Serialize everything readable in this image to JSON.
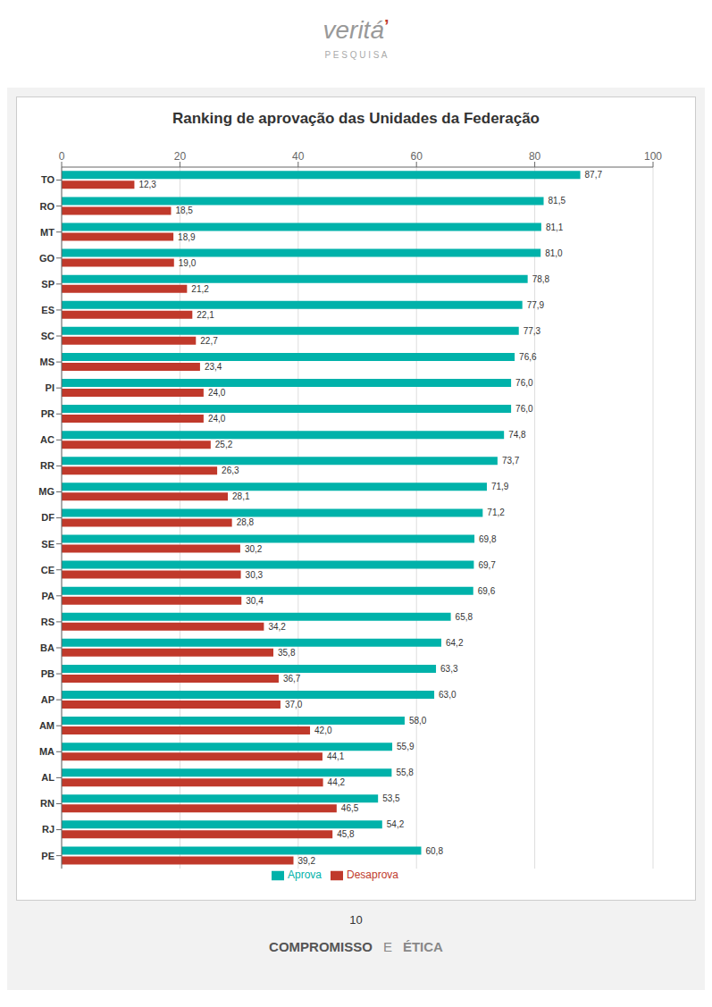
{
  "chart_data": {
    "type": "bar",
    "title": "Ranking de aprovação das Unidades da Federação",
    "orientation": "horizontal",
    "categories": [
      "TO",
      "RO",
      "MT",
      "GO",
      "SP",
      "ES",
      "SC",
      "MS",
      "PI",
      "PR",
      "AC",
      "RR",
      "MG",
      "DF",
      "SE",
      "CE",
      "PA",
      "RS",
      "BA",
      "PB",
      "AP",
      "AM",
      "MA",
      "AL",
      "RN",
      "RJ",
      "PE"
    ],
    "series": [
      {
        "name": "Aprova",
        "color": "#00B2AA",
        "values": [
          87.7,
          81.5,
          81.1,
          81.0,
          78.8,
          77.9,
          77.3,
          76.6,
          76.0,
          76.0,
          74.8,
          73.7,
          71.9,
          71.2,
          69.8,
          69.7,
          69.6,
          65.8,
          64.2,
          63.3,
          63.0,
          58.0,
          55.9,
          55.8,
          53.5,
          54.2,
          60.8
        ],
        "value_labels": [
          "87,7",
          "81,5",
          "81,1",
          "81,0",
          "78,8",
          "77,9",
          "77,3",
          "76,6",
          "76,0",
          "76,0",
          "74,8",
          "73,7",
          "71,9",
          "71,2",
          "69,8",
          "69,7",
          "69,6",
          "65,8",
          "64,2",
          "63,3",
          "63,0",
          "58,0",
          "55,9",
          "55,8",
          "53,5",
          "54,2",
          "60,8"
        ]
      },
      {
        "name": "Desaprova",
        "color": "#C0392B",
        "values": [
          12.3,
          18.5,
          18.9,
          19.0,
          21.2,
          22.1,
          22.7,
          23.4,
          24.0,
          24.0,
          25.2,
          26.3,
          28.1,
          28.8,
          30.2,
          30.3,
          30.4,
          34.2,
          35.8,
          36.7,
          37.0,
          42.0,
          44.1,
          44.2,
          46.5,
          45.8,
          39.2
        ],
        "value_labels": [
          "12,3",
          "18,5",
          "18,9",
          "19,0",
          "21,2",
          "22,1",
          "22,7",
          "23,4",
          "24,0",
          "24,0",
          "25,2",
          "26,3",
          "28,1",
          "28,8",
          "30,2",
          "30,3",
          "30,4",
          "34,2",
          "35,8",
          "36,7",
          "37,0",
          "42,0",
          "44,1",
          "44,2",
          "46,5",
          "45,8",
          "39,2"
        ]
      }
    ],
    "xlim": [
      0,
      100
    ],
    "xticks": [
      0,
      20,
      40,
      60,
      80,
      100
    ],
    "grid": true,
    "legend": "bottom",
    "data_labels": true,
    "annotations": [
      "veritá",
      "’",
      "P E S Q U I S A",
      "10",
      "COMPROMISSO",
      "E",
      "ÉTICA"
    ]
  }
}
